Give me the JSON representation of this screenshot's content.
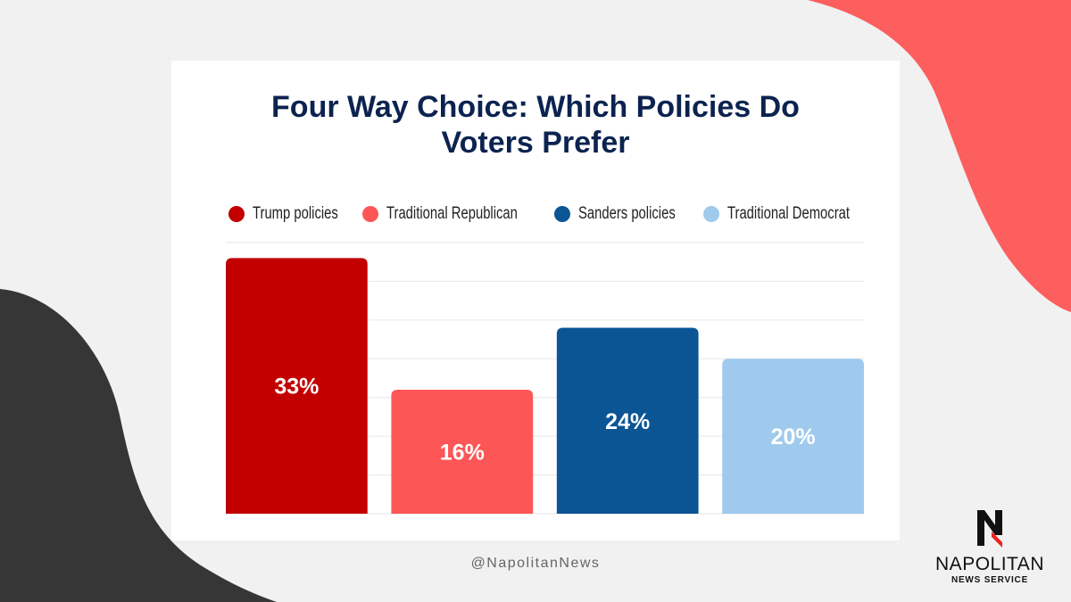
{
  "colors": {
    "background": "#f1f1f1",
    "accent_coral": "#fd5e5e",
    "accent_dark": "#363636",
    "title": "#0c2350"
  },
  "chart_data": {
    "type": "bar",
    "title": "Four Way Choice: Which Policies Do Voters Prefer",
    "title_lines": [
      "Four Way Choice: Which Policies Do",
      "Voters Prefer"
    ],
    "categories": [
      "Trump policies",
      "Traditional Republican",
      "Sanders policies",
      "Traditional Democrat"
    ],
    "values": [
      33,
      16,
      24,
      20
    ],
    "data_labels": [
      "33%",
      "16%",
      "24%",
      "20%"
    ],
    "colors": [
      "#c20000",
      "#fd5656",
      "#0b5595",
      "#9fcaed"
    ],
    "ylim": [
      0,
      35
    ],
    "grid": true,
    "legend": "top",
    "xlabel": "",
    "ylabel": ""
  },
  "footer": {
    "handle": "@NapolitanNews"
  },
  "logo": {
    "icon": "napolitan-n-logo",
    "name": "NAPOLITAN",
    "subtitle": "NEWS SERVICE"
  }
}
